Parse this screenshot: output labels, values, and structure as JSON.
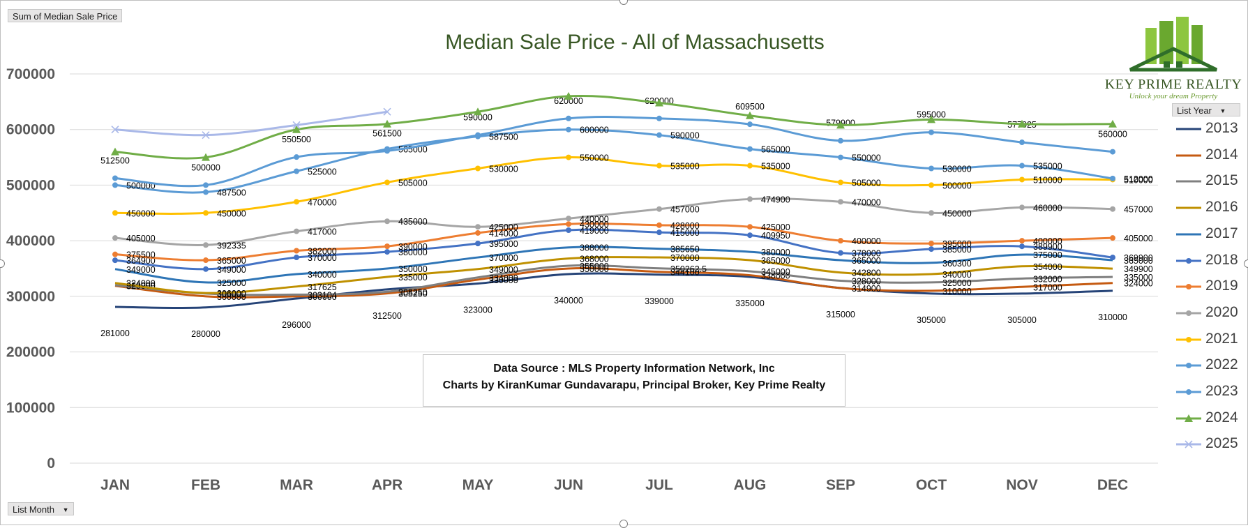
{
  "pivot": {
    "value_field": "Sum of Median Sale Price",
    "legend_field": "List Year",
    "axis_field": "List Month"
  },
  "data_source": {
    "line1": "Data Source : MLS Property Information Network, Inc",
    "line2": "Charts by KiranKumar Gundavarapu, Principal Broker, Key Prime Realty"
  },
  "logo": {
    "name": "KEY PRIME REALTY",
    "tagline": "Unlock your dream Property"
  },
  "chart_data": {
    "type": "line",
    "title": "Median Sale Price - All of Massachusetts",
    "xlabel": "",
    "ylabel": "",
    "ylim": [
      0,
      700000
    ],
    "yticks": [
      0,
      100000,
      200000,
      300000,
      400000,
      500000,
      600000,
      700000
    ],
    "grid": true,
    "legend_position": "right",
    "categories": [
      "JAN",
      "FEB",
      "MAR",
      "APR",
      "MAY",
      "JUN",
      "JUL",
      "AUG",
      "SEP",
      "OCT",
      "NOV",
      "DEC"
    ],
    "series": [
      {
        "name": "2013",
        "color": "#264478",
        "marker": "none",
        "values": [
          281000,
          280000,
          296000,
          312500,
          323000,
          340000,
          339000,
          335000,
          315000,
          305000,
          305000,
          310000
        ]
      },
      {
        "name": "2014",
        "color": "#c55a11",
        "marker": "none",
        "values": [
          319000,
          300000,
          300000,
          305250,
          330000,
          350000,
          344100,
          338000,
          314900,
          310000,
          317000,
          324000
        ]
      },
      {
        "name": "2015",
        "color": "#7f7f7f",
        "marker": "none",
        "values": [
          320000,
          305000,
          303104,
          308250,
          334000,
          355000,
          350262.5,
          345000,
          328000,
          325000,
          332000,
          335000
        ]
      },
      {
        "name": "2016",
        "color": "#bf9000",
        "marker": "none",
        "values": [
          324000,
          306000,
          317625,
          335000,
          349000,
          368000,
          370000,
          365000,
          342800,
          340000,
          354000,
          349900
        ]
      },
      {
        "name": "2017",
        "color": "#2e75b6",
        "marker": "none",
        "values": [
          349000,
          325000,
          340000,
          350000,
          370000,
          388000,
          385650,
          380000,
          365000,
          360300,
          375000,
          365000
        ]
      },
      {
        "name": "2018",
        "color": "#4472c4",
        "marker": "dot",
        "values": [
          364900,
          349000,
          370000,
          380000,
          395000,
          419000,
          415000,
          409950,
          378000,
          385000,
          389900,
          369900
        ]
      },
      {
        "name": "2019",
        "color": "#ed7d31",
        "marker": "dot",
        "values": [
          375500,
          365000,
          382000,
          390000,
          414000,
          430000,
          428000,
          425000,
          400000,
          395000,
          400000,
          405000
        ]
      },
      {
        "name": "2020",
        "color": "#a5a5a5",
        "marker": "dot",
        "values": [
          405000,
          392335,
          417000,
          435000,
          425000,
          440000,
          457000,
          474900,
          470000,
          450000,
          460000,
          457000
        ]
      },
      {
        "name": "2021",
        "color": "#ffc000",
        "marker": "dot",
        "values": [
          450000,
          450000,
          470000,
          505000,
          530000,
          550000,
          535000,
          535000,
          505000,
          500000,
          510000,
          510000
        ]
      },
      {
        "name": "2022",
        "color": "#5b9bd5",
        "marker": "dot",
        "values": [
          500000,
          487500,
          525000,
          565000,
          587500,
          600000,
          590000,
          565000,
          550000,
          530000,
          535000,
          512000
        ]
      },
      {
        "name": "2023",
        "color": "#5b9bd5",
        "marker": "dot",
        "values": [
          512500,
          500000,
          550500,
          561500,
          590000,
          620000,
          620000,
          609500,
          579900,
          595000,
          577025,
          560000
        ]
      },
      {
        "name": "2024",
        "color": "#70ad47",
        "marker": "triangle",
        "values": [
          560000,
          550000,
          600000,
          610000,
          632000,
          660000,
          648000,
          625000,
          608000,
          618000,
          610000,
          610000
        ]
      },
      {
        "name": "2025",
        "color": "#a9b8e8",
        "marker": "cross",
        "values": [
          600000,
          590000,
          608000,
          632000,
          null,
          null,
          null,
          null,
          null,
          null,
          null,
          null
        ]
      }
    ]
  }
}
